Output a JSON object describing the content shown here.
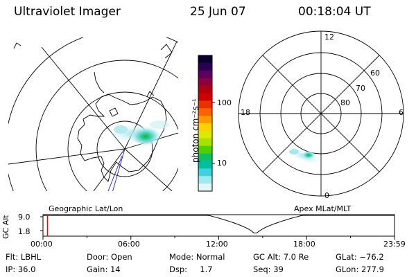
{
  "header": {
    "instrument": "Ultraviolet Imager",
    "date": "25 Jun 07",
    "time": "00:18:04 UT"
  },
  "colorbar": {
    "ticks": [
      "100",
      "10"
    ],
    "unit_label": "photon cm⁻²s⁻¹",
    "colors": [
      "#0a0030",
      "#2a0050",
      "#5a0060",
      "#8a0040",
      "#b00010",
      "#d00000",
      "#e83000",
      "#ff6000",
      "#ff9800",
      "#ffd000",
      "#e0e800",
      "#a8e000",
      "#50d000",
      "#10c060",
      "#00c0a0",
      "#40d0e0",
      "#a0e8f0",
      "#e0f8f8"
    ]
  },
  "left_panel": {
    "label": "Geographic Lat/Lon"
  },
  "right_panel": {
    "label": "Apex  MLat/MLT",
    "mlt_labels": {
      "top": "12",
      "left": "18",
      "right": "6",
      "bottom": "0"
    },
    "mlat_labels": [
      "60",
      "70",
      "80"
    ]
  },
  "altitude_plot": {
    "ylabel": "GC Alt",
    "yticks": [
      "9.0",
      "1.8"
    ],
    "xticks": [
      "00:00",
      "06:00",
      "12:00",
      "18:00",
      "23:59"
    ],
    "marker_hour": 0.3
  },
  "status": {
    "row1": [
      {
        "key": "flt",
        "text": "Flt: LBHL"
      },
      {
        "key": "door",
        "text": "Door: Open"
      },
      {
        "key": "mode",
        "text": "Mode: Normal"
      },
      {
        "key": "gcalt",
        "text": "GC Alt: 7.0 Re"
      },
      {
        "key": "glat",
        "text": "GLat: −76.2"
      }
    ],
    "row2": [
      {
        "key": "ip",
        "text": "IP: 36.0"
      },
      {
        "key": "gain",
        "text": "Gain: 14"
      },
      {
        "key": "dsp",
        "text": "Dsp:     1.7"
      },
      {
        "key": "seq",
        "text": "Seq: 39"
      },
      {
        "key": "glon",
        "text": "GLon: 277.9"
      }
    ]
  }
}
